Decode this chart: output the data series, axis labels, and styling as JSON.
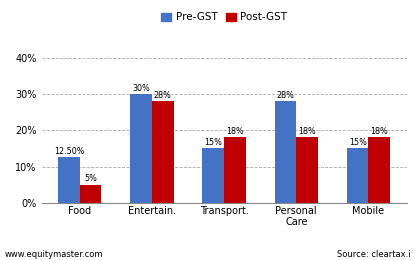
{
  "categories": [
    "Food",
    "Entertain.",
    "Transport.",
    "Personal\nCare",
    "Mobile"
  ],
  "pre_gst": [
    12.5,
    30,
    15,
    28,
    15
  ],
  "post_gst": [
    5,
    28,
    18,
    18,
    18
  ],
  "pre_gst_labels": [
    "12.50%",
    "30%",
    "15%",
    "28%",
    "15%"
  ],
  "post_gst_labels": [
    "5%",
    "28%",
    "18%",
    "18%",
    "18%"
  ],
  "pre_gst_color": "#4472C4",
  "post_gst_color": "#C00000",
  "ylim": [
    0,
    43
  ],
  "yticks": [
    0,
    10,
    20,
    30,
    40
  ],
  "ytick_labels": [
    "0%",
    "10%",
    "20%",
    "30%",
    "40%"
  ],
  "legend_pre": "Pre-GST",
  "legend_post": "Post-GST",
  "footer_left": "www.equitymaster.com",
  "footer_right": "Source: cleartax.i",
  "background_color": "#FFFFFF",
  "grid_color": "#AAAAAA",
  "bar_width": 0.3,
  "label_fontsize": 5.8,
  "tick_fontsize": 7.0,
  "legend_fontsize": 7.5,
  "footer_fontsize": 6.0
}
